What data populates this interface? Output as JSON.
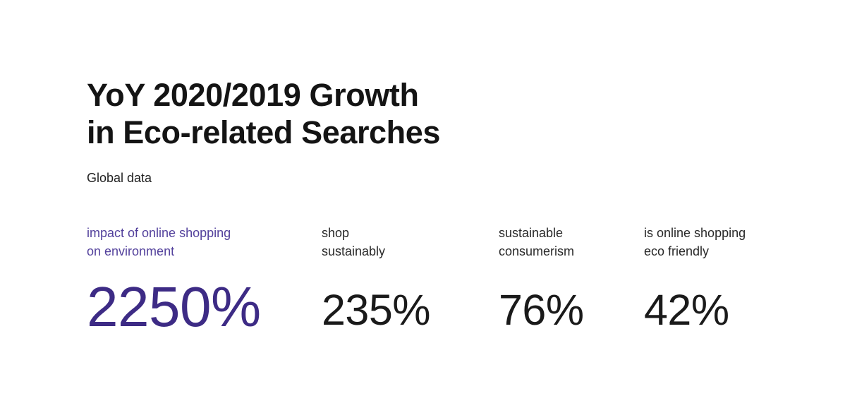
{
  "header": {
    "title_line1": "YoY 2020/2019 Growth",
    "title_line2": "in Eco-related Searches",
    "subtitle": "Global data"
  },
  "stats": {
    "items": [
      {
        "label_lines": [
          "impact of online shopping",
          "on environment"
        ],
        "value": "2250%",
        "highlighted": true
      },
      {
        "label_lines": [
          "shop",
          "sustainably"
        ],
        "value": "235%",
        "highlighted": false
      },
      {
        "label_lines": [
          "sustainable",
          "consumerism"
        ],
        "value": "76%",
        "highlighted": false
      },
      {
        "label_lines": [
          "is online shopping",
          "eco friendly"
        ],
        "value": "42%",
        "highlighted": false
      }
    ]
  },
  "colors": {
    "background": "#ffffff",
    "text_primary": "#141414",
    "text_label": "#282828",
    "accent_label": "#53419c",
    "accent_value": "#3d2b85"
  },
  "chart_data": {
    "type": "table",
    "title": "YoY 2020/2019 Growth in Eco-related Searches",
    "subtitle": "Global data",
    "categories": [
      "impact of online shopping on environment",
      "shop sustainably",
      "sustainable consumerism",
      "is online shopping eco friendly"
    ],
    "values": [
      2250,
      235,
      76,
      42
    ],
    "unit": "%",
    "highlighted_index": 0,
    "layout": "four kpi columns, first column emphasized in purple"
  }
}
